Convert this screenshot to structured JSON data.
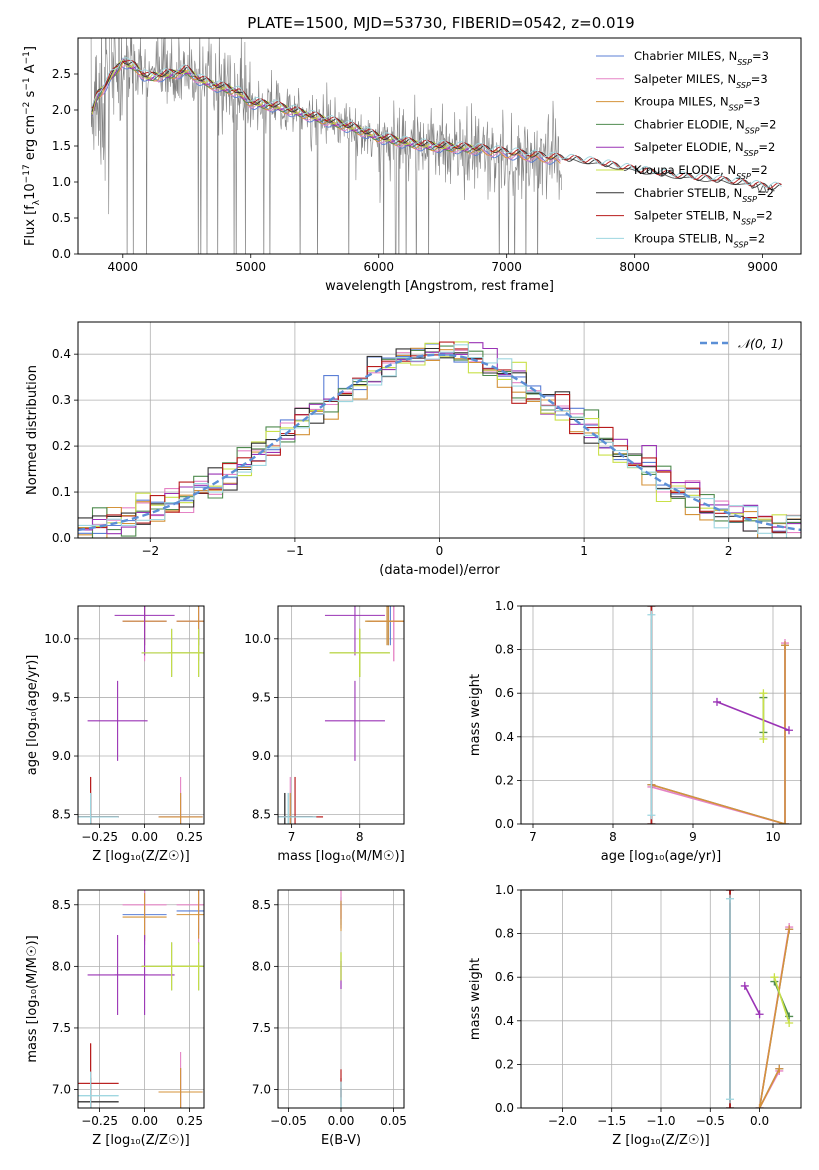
{
  "figure_title": "PLATE=1500, MJD=53730, FIBERID=0542, z=0.019",
  "colors": {
    "Chabrier MILES": "#5b7fd6",
    "Salpeter MILES": "#e583c5",
    "Kroupa MILES": "#d4933a",
    "Chabrier ELODIE": "#4f8b4f",
    "Salpeter ELODIE": "#9a33b5",
    "Kroupa ELODIE": "#c9e048",
    "Chabrier STELIB": "#333333",
    "Salpeter STELIB": "#b81c1c",
    "Kroupa STELIB": "#9dd6e0",
    "data": "#808080",
    "gauss": "#5b8fd6",
    "grid": "#b0b0b0"
  },
  "chart_data": [
    {
      "id": "spectrum",
      "type": "line",
      "title": "PLATE=1500, MJD=53730, FIBERID=0542, z=0.019",
      "xlabel": "wavelength [Angstrom, rest frame]",
      "ylabel_parts": [
        "Flux [f",
        "λ",
        "10",
        "−17",
        " erg cm",
        "−2",
        " s",
        "−1",
        " A",
        "−1",
        "]"
      ],
      "xlim": [
        3650,
        9300
      ],
      "ylim": [
        0,
        3.0
      ],
      "xticks": [
        "4000",
        "5000",
        "6000",
        "7000",
        "8000",
        "9000"
      ],
      "yticks": [
        "0.0",
        "0.5",
        "1.0",
        "1.5",
        "2.0",
        "2.5"
      ],
      "grid": false,
      "legend_position": "top-right",
      "legend": [
        {
          "name": "Chabrier MILES",
          "nssp": "3"
        },
        {
          "name": "Salpeter MILES",
          "nssp": "3"
        },
        {
          "name": "Kroupa MILES",
          "nssp": "3"
        },
        {
          "name": "Chabrier ELODIE",
          "nssp": "2"
        },
        {
          "name": "Salpeter ELODIE",
          "nssp": "2"
        },
        {
          "name": "Kroupa ELODIE",
          "nssp": "2"
        },
        {
          "name": "Chabrier STELIB",
          "nssp": "2"
        },
        {
          "name": "Salpeter STELIB",
          "nssp": "2"
        },
        {
          "name": "Kroupa STELIB",
          "nssp": "2"
        }
      ],
      "model_x": [
        3750,
        3800,
        3850,
        3900,
        3950,
        4000,
        4050,
        4100,
        4150,
        4200,
        4300,
        4400,
        4500,
        4600,
        4700,
        4800,
        4900,
        5000,
        5200,
        5400,
        5600,
        5800,
        6000,
        6200,
        6400,
        6600,
        6800,
        7000,
        7200,
        7400,
        7600,
        7800,
        8000,
        8200,
        8400,
        8600,
        8800,
        9000,
        9200
      ],
      "model_y": [
        1.9,
        2.2,
        2.3,
        2.45,
        2.55,
        2.68,
        2.62,
        2.6,
        2.5,
        2.45,
        2.48,
        2.5,
        2.55,
        2.42,
        2.35,
        2.3,
        2.25,
        2.1,
        2.05,
        1.95,
        1.85,
        1.75,
        1.62,
        1.55,
        1.5,
        1.48,
        1.45,
        1.4,
        1.36,
        1.32,
        1.28,
        1.22,
        1.15,
        1.1,
        1.05,
        1.02,
        0.98,
        0.92,
        0.9
      ],
      "data_x_range": [
        3750,
        7430
      ]
    },
    {
      "id": "residuals",
      "type": "line",
      "xlabel": "(data-model)/error",
      "ylabel": "Normed distribution",
      "xlim": [
        -2.5,
        2.5
      ],
      "ylim": [
        0,
        0.47
      ],
      "xticks": [
        "−2",
        "−1",
        "0",
        "1",
        "2"
      ],
      "yticks": [
        "0.0",
        "0.1",
        "0.2",
        "0.3",
        "0.4"
      ],
      "grid": true,
      "legend_position": "top-right",
      "legend": [
        {
          "name": "𝒩(0, 1)"
        }
      ]
    },
    {
      "id": "age-z",
      "type": "scatter",
      "xlabel": "Z [log₁₀(Z/Z☉)]",
      "ylabel": "age  [log₁₀(age/yr)]",
      "xlim": [
        -0.37,
        0.33
      ],
      "ylim": [
        8.42,
        10.28
      ],
      "xticks": [
        "−0.25",
        "0.00",
        "0.25"
      ],
      "yticks": [
        "8.5",
        "9.0",
        "9.5",
        "10.0"
      ],
      "grid": true
    },
    {
      "id": "age-mass",
      "type": "scatter",
      "xlabel": "mass [log₁₀(M/M☉)]",
      "xlim": [
        6.8,
        8.65
      ],
      "ylim": [
        8.42,
        10.28
      ],
      "xticks": [
        "7",
        "8"
      ],
      "yticks": [
        "8.5",
        "9.0",
        "9.5",
        "10.0"
      ],
      "grid": true
    },
    {
      "id": "weight-age",
      "type": "line",
      "xlabel": "age  [log₁₀(age/yr)]",
      "ylabel": "mass weight",
      "xlim": [
        6.85,
        10.35
      ],
      "ylim": [
        0,
        1.0
      ],
      "xticks": [
        "7",
        "8",
        "9",
        "10"
      ],
      "yticks": [
        "0.0",
        "0.2",
        "0.4",
        "0.6",
        "0.8",
        "1.0"
      ],
      "grid": true
    },
    {
      "id": "mass-z",
      "type": "scatter",
      "xlabel": "Z [log₁₀(Z/Z☉)]",
      "ylabel": "mass [log₁₀(M/M☉)]",
      "xlim": [
        -0.37,
        0.33
      ],
      "ylim": [
        6.85,
        8.62
      ],
      "xticks": [
        "−0.25",
        "0.00",
        "0.25"
      ],
      "yticks": [
        "7.0",
        "7.5",
        "8.0",
        "8.5"
      ],
      "grid": true
    },
    {
      "id": "mass-ebv",
      "type": "scatter",
      "xlabel": "E(B-V)",
      "xlim": [
        -0.06,
        0.06
      ],
      "ylim": [
        6.85,
        8.62
      ],
      "xticks": [
        "−0.05",
        "0.00",
        "0.05"
      ],
      "yticks": [
        "7.0",
        "7.5",
        "8.0",
        "8.5"
      ],
      "grid": true
    },
    {
      "id": "weight-z",
      "type": "line",
      "xlabel": "Z [log₁₀(Z/Z☉)]",
      "ylabel": "mass weight",
      "xlim": [
        -2.42,
        0.42
      ],
      "ylim": [
        0,
        1.0
      ],
      "xticks": [
        "−2.0",
        "−1.5",
        "−1.0",
        "−0.5",
        "0.0"
      ],
      "yticks": [
        "0.0",
        "0.2",
        "0.4",
        "0.6",
        "0.8",
        "1.0"
      ],
      "grid": true
    }
  ],
  "ssp_fits": [
    {
      "model": "Chabrier MILES",
      "components": [
        {
          "Z": 0.2,
          "age": 8.48,
          "mass": 6.98,
          "weight": 0.18
        },
        {
          "Z": 0.0,
          "age": 10.15,
          "mass": 8.42,
          "weight": 0.0
        },
        {
          "Z": 0.3,
          "age": 10.15,
          "mass": 8.45,
          "weight": 0.82
        }
      ]
    },
    {
      "model": "Salpeter MILES",
      "components": [
        {
          "Z": 0.2,
          "age": 8.48,
          "mass": 6.98,
          "weight": 0.17
        },
        {
          "Z": 0.0,
          "age": 10.15,
          "mass": 8.5,
          "weight": 0.0
        },
        {
          "Z": 0.3,
          "age": 10.15,
          "mass": 8.5,
          "weight": 0.83
        }
      ]
    },
    {
      "model": "Kroupa MILES",
      "components": [
        {
          "Z": 0.2,
          "age": 8.48,
          "mass": 6.98,
          "weight": 0.18
        },
        {
          "Z": 0.0,
          "age": 10.15,
          "mass": 8.4,
          "weight": 0.0
        },
        {
          "Z": 0.3,
          "age": 10.15,
          "mass": 8.42,
          "weight": 0.82
        }
      ]
    },
    {
      "model": "Chabrier ELODIE",
      "components": [
        {
          "Z": 0.15,
          "age": 9.88,
          "mass": 8.0,
          "weight": 0.58
        },
        {
          "Z": 0.3,
          "age": 9.88,
          "mass": 8.0,
          "weight": 0.42
        }
      ]
    },
    {
      "model": "Salpeter ELODIE",
      "components": [
        {
          "Z": -0.15,
          "age": 9.3,
          "mass": 7.93,
          "weight": 0.56
        },
        {
          "Z": 0.0,
          "age": 10.2,
          "mass": 7.93,
          "weight": 0.43
        }
      ]
    },
    {
      "model": "Kroupa ELODIE",
      "components": [
        {
          "Z": 0.15,
          "age": 9.88,
          "mass": 8.0,
          "weight": 0.6
        },
        {
          "Z": 0.3,
          "age": 9.88,
          "mass": 8.0,
          "weight": 0.39
        }
      ]
    },
    {
      "model": "Chabrier STELIB",
      "components": [
        {
          "Z": -0.3,
          "age": 8.48,
          "mass": 6.9,
          "weight": 1.0
        },
        {
          "Z": -0.3,
          "age": 8.48,
          "mass": 6.9,
          "weight": 0.0
        }
      ]
    },
    {
      "model": "Salpeter STELIB",
      "components": [
        {
          "Z": -0.3,
          "age": 8.48,
          "mass": 7.05,
          "weight": 1.0
        },
        {
          "Z": -0.3,
          "age": 8.48,
          "mass": 7.05,
          "weight": 0.0
        }
      ]
    },
    {
      "model": "Kroupa STELIB",
      "components": [
        {
          "Z": -0.3,
          "age": 8.48,
          "mass": 6.95,
          "weight": 0.96
        },
        {
          "Z": -0.3,
          "age": 8.48,
          "mass": 6.95,
          "weight": 0.04
        }
      ]
    }
  ]
}
